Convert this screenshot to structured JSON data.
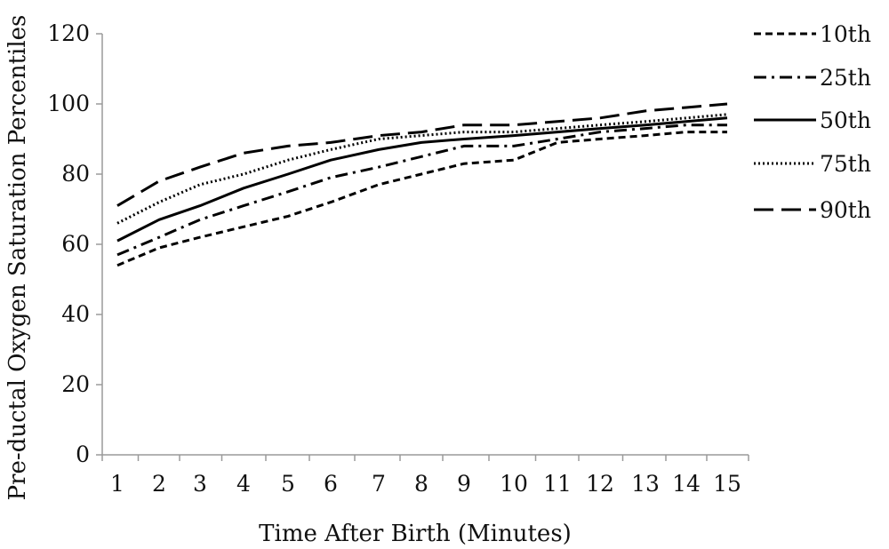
{
  "chart_data": {
    "type": "line",
    "xlabel": "Time After Birth (Minutes)",
    "ylabel": "Pre-ductal Oxygen Saturation Percentiles",
    "x": [
      1,
      2,
      3,
      4,
      5,
      6,
      7,
      8,
      9,
      10,
      11,
      12,
      13,
      14,
      15
    ],
    "x_tick_labels": [
      "1",
      "2",
      "3",
      "4",
      "5",
      "6",
      "7",
      "8",
      "9",
      "10",
      "11",
      "12",
      "13",
      "14",
      "15"
    ],
    "y_ticks": [
      0,
      20,
      40,
      60,
      80,
      100,
      120
    ],
    "y_tick_labels": [
      "0",
      "20",
      "40",
      "60",
      "80",
      "100",
      "120"
    ],
    "ylim": [
      0,
      120
    ],
    "grid": false,
    "legend_position": "right",
    "series": [
      {
        "name": "10th",
        "dash": "short-dash",
        "values": [
          54,
          59,
          62,
          65,
          68,
          72,
          77,
          80,
          83,
          84,
          89,
          90,
          91,
          92,
          92
        ]
      },
      {
        "name": "25th",
        "dash": "dash-dot",
        "values": [
          57,
          62,
          67,
          71,
          75,
          79,
          82,
          85,
          88,
          88,
          90,
          92,
          93,
          94,
          94
        ]
      },
      {
        "name": "50th",
        "dash": "solid",
        "values": [
          61,
          67,
          71,
          76,
          80,
          84,
          87,
          89,
          90,
          91,
          92,
          93,
          94,
          95,
          96
        ]
      },
      {
        "name": "75th",
        "dash": "dotted",
        "values": [
          66,
          72,
          77,
          80,
          84,
          87,
          90,
          91,
          92,
          92,
          93,
          94,
          95,
          96,
          97
        ]
      },
      {
        "name": "90th",
        "dash": "long-dash",
        "values": [
          71,
          78,
          82,
          86,
          88,
          89,
          91,
          92,
          94,
          94,
          95,
          96,
          98,
          99,
          100
        ]
      }
    ]
  }
}
